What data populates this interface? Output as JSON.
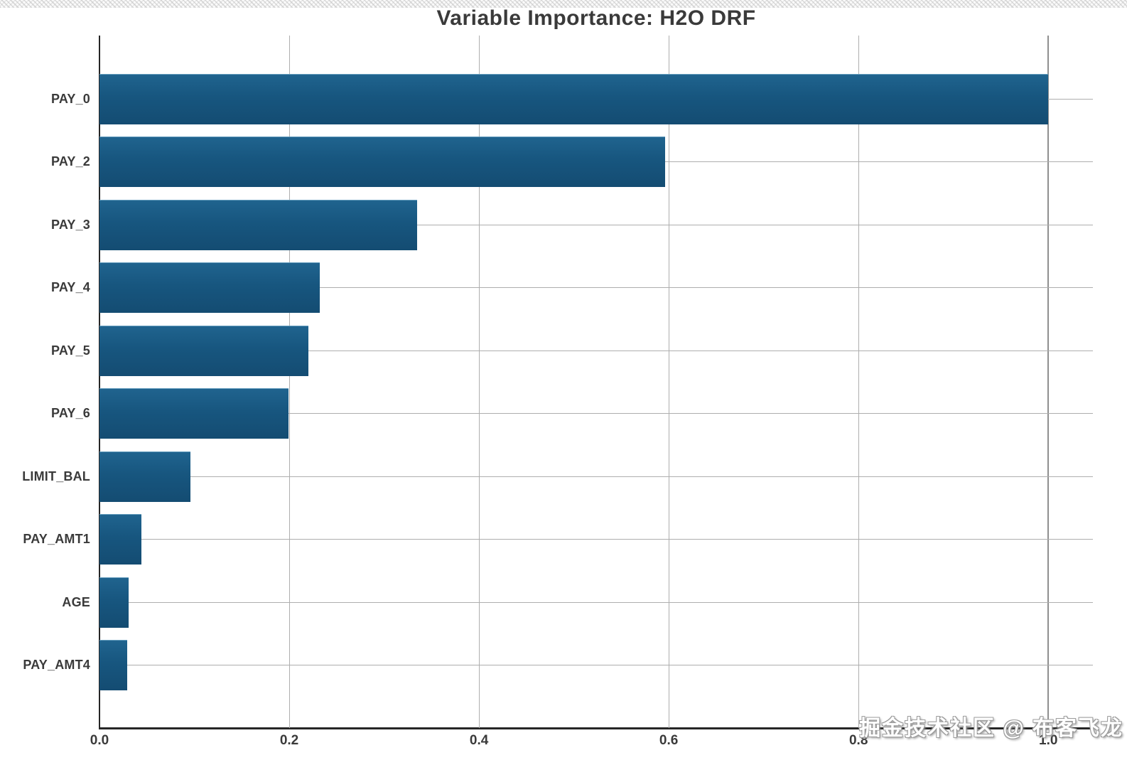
{
  "page": {
    "background": "#ffffff"
  },
  "watermark": {
    "text": "掘金技术社区 @ 布客飞龙"
  },
  "chart_data": {
    "type": "bar",
    "orientation": "horizontal",
    "title": "Variable Importance: H2O DRF",
    "categories": [
      "PAY_0",
      "PAY_2",
      "PAY_3",
      "PAY_4",
      "PAY_5",
      "PAY_6",
      "LIMIT_BAL",
      "PAY_AMT1",
      "AGE",
      "PAY_AMT4"
    ],
    "values": [
      1.0,
      0.596,
      0.335,
      0.232,
      0.22,
      0.199,
      0.096,
      0.044,
      0.031,
      0.029
    ],
    "xlabel": "",
    "ylabel": "",
    "xlim": [
      0,
      1.047
    ],
    "xticks": [
      {
        "value": 0.0,
        "label": "0.0"
      },
      {
        "value": 0.2,
        "label": "0.2"
      },
      {
        "value": 0.4,
        "label": "0.4"
      },
      {
        "value": 0.6,
        "label": "0.6"
      },
      {
        "value": 0.8,
        "label": "0.8"
      },
      {
        "value": 1.0,
        "label": "1.0"
      }
    ],
    "grid": true,
    "legend_position": "none",
    "bar_color": "#17567f",
    "grid_color": "#aeaeae",
    "axis_color": "#262626",
    "label_color": "#3a3a3a"
  }
}
